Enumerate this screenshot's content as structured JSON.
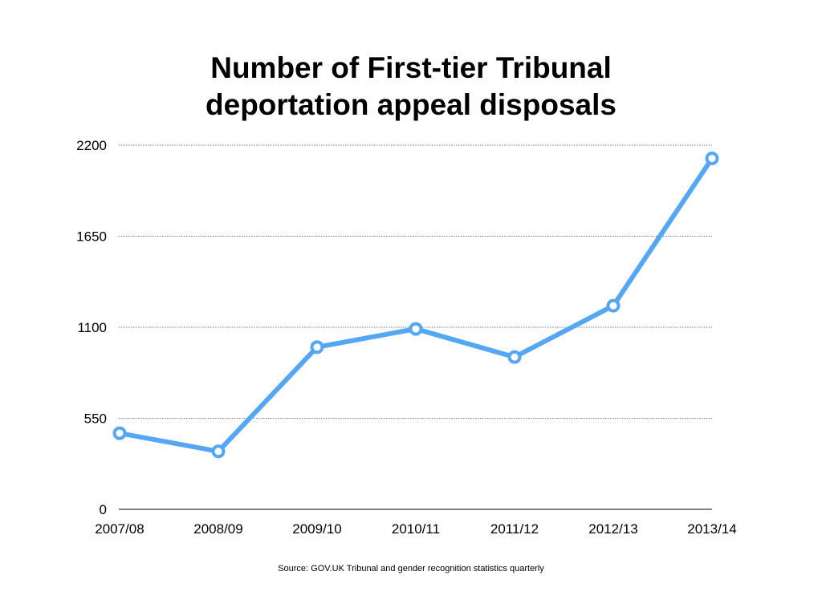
{
  "chart_data": {
    "type": "line",
    "title_lines": [
      "Number of First-tier Tribunal",
      "deportation appeal disposals"
    ],
    "xlabel": "",
    "ylabel": "",
    "categories": [
      "2007/08",
      "2008/09",
      "2009/10",
      "2010/11",
      "2011/12",
      "2012/13",
      "2013/14"
    ],
    "series": [
      {
        "values": [
          460,
          350,
          980,
          1090,
          920,
          1230,
          2120
        ]
      }
    ],
    "ylim": [
      0,
      2200
    ],
    "yticks": [
      "0",
      "550",
      "1100",
      "1650",
      "2200"
    ],
    "grid": true,
    "line_color": "#55a7f5",
    "marker_fill": "#ffffff",
    "source": "Source: GOV.UK Tribunal and gender recognition statistics quarterly"
  }
}
